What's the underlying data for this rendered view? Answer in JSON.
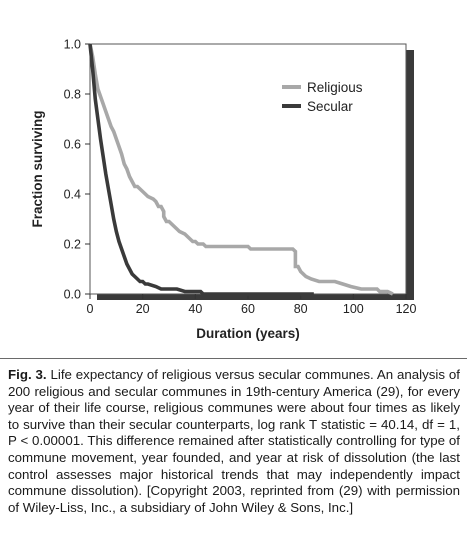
{
  "chart_data": {
    "type": "line",
    "title": "",
    "xlabel": "Duration (years)",
    "ylabel": "Fraction surviving",
    "xlim": [
      0,
      120
    ],
    "ylim": [
      0,
      1.0
    ],
    "xticks": [
      "0",
      "20",
      "40",
      "60",
      "80",
      "100",
      "120"
    ],
    "yticks": [
      "0.0",
      "0.2",
      "0.4",
      "0.6",
      "0.8",
      "1.0"
    ],
    "legend_position": "top-right",
    "grid": false,
    "series": [
      {
        "name": "Religious",
        "color": "#a8a8a8",
        "points": [
          [
            0,
            1.0
          ],
          [
            1,
            0.95
          ],
          [
            2,
            0.88
          ],
          [
            3,
            0.82
          ],
          [
            4,
            0.79
          ],
          [
            5,
            0.76
          ],
          [
            6,
            0.73
          ],
          [
            7,
            0.7
          ],
          [
            8,
            0.67
          ],
          [
            9,
            0.65
          ],
          [
            10,
            0.62
          ],
          [
            11,
            0.59
          ],
          [
            12,
            0.56
          ],
          [
            13,
            0.52
          ],
          [
            14,
            0.5
          ],
          [
            15,
            0.47
          ],
          [
            16,
            0.45
          ],
          [
            17,
            0.43
          ],
          [
            18,
            0.43
          ],
          [
            19,
            0.42
          ],
          [
            20,
            0.41
          ],
          [
            21,
            0.4
          ],
          [
            22,
            0.39
          ],
          [
            24,
            0.38
          ],
          [
            25,
            0.37
          ],
          [
            26,
            0.35
          ],
          [
            27,
            0.35
          ],
          [
            28,
            0.33
          ],
          [
            28,
            0.31
          ],
          [
            29,
            0.29
          ],
          [
            30,
            0.29
          ],
          [
            31,
            0.28
          ],
          [
            32,
            0.27
          ],
          [
            33,
            0.26
          ],
          [
            34,
            0.25
          ],
          [
            36,
            0.24
          ],
          [
            37,
            0.23
          ],
          [
            38,
            0.22
          ],
          [
            39,
            0.21
          ],
          [
            40,
            0.21
          ],
          [
            41,
            0.2
          ],
          [
            43,
            0.2
          ],
          [
            44,
            0.19
          ],
          [
            60,
            0.19
          ],
          [
            61,
            0.18
          ],
          [
            77,
            0.18
          ],
          [
            78,
            0.17
          ],
          [
            78,
            0.11
          ],
          [
            79,
            0.11
          ],
          [
            80,
            0.09
          ],
          [
            82,
            0.07
          ],
          [
            84,
            0.06
          ],
          [
            87,
            0.05
          ],
          [
            93,
            0.05
          ],
          [
            96,
            0.04
          ],
          [
            99,
            0.03
          ],
          [
            103,
            0.02
          ],
          [
            109,
            0.02
          ],
          [
            110,
            0.01
          ],
          [
            113,
            0.01
          ],
          [
            115,
            0.0
          ]
        ]
      },
      {
        "name": "Secular",
        "color": "#3a3a3a",
        "points": [
          [
            0,
            1.0
          ],
          [
            1,
            0.9
          ],
          [
            2,
            0.78
          ],
          [
            3,
            0.7
          ],
          [
            4,
            0.62
          ],
          [
            5,
            0.55
          ],
          [
            6,
            0.48
          ],
          [
            7,
            0.42
          ],
          [
            8,
            0.36
          ],
          [
            9,
            0.3
          ],
          [
            10,
            0.25
          ],
          [
            11,
            0.21
          ],
          [
            12,
            0.18
          ],
          [
            13,
            0.15
          ],
          [
            14,
            0.12
          ],
          [
            15,
            0.1
          ],
          [
            16,
            0.08
          ],
          [
            17,
            0.07
          ],
          [
            18,
            0.06
          ],
          [
            19,
            0.05
          ],
          [
            20,
            0.05
          ],
          [
            21,
            0.04
          ],
          [
            22,
            0.04
          ],
          [
            25,
            0.03
          ],
          [
            27,
            0.02
          ],
          [
            33,
            0.02
          ],
          [
            36,
            0.01
          ],
          [
            42,
            0.01
          ],
          [
            43,
            0.0
          ],
          [
            85,
            0.0
          ]
        ]
      }
    ]
  },
  "caption": {
    "label": "Fig. 3.",
    "text": "Life expectancy of religious versus secular communes. An analysis of 200 religious and secular communes in 19th-century America (29), for every year of their life course, religious communes were about four times as likely to survive than their secular counterparts, log rank T statistic = 40.14, df = 1, P < 0.00001. This difference remained after statistically controlling for type of commune movement, year founded, and year at risk of dissolution (the last control assesses major historical trends that may independently impact commune dissolution). [Copyright 2003, reprinted from (29) with permission of Wiley-Liss, Inc., a subsidiary of John Wiley & Sons, Inc.]"
  }
}
